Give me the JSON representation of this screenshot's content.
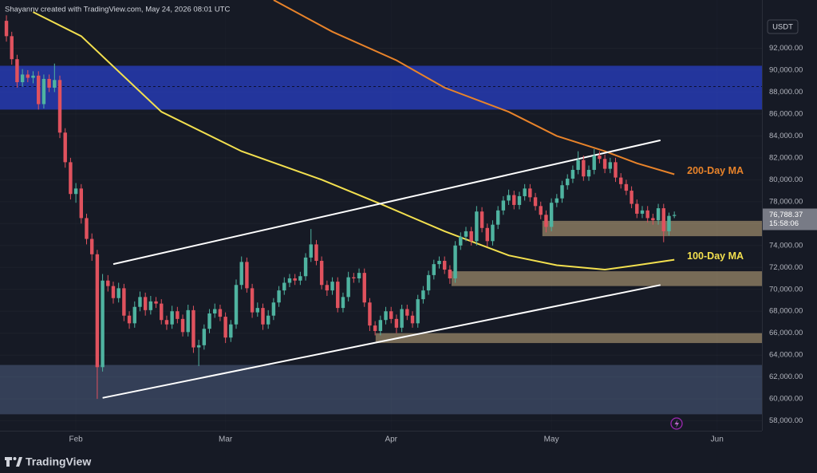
{
  "chart_data": {
    "type": "candlestick",
    "header": "Shayannv created with TradingView.com, May 24, 2026 08:01 UTC",
    "currency": "USDT",
    "watermark": "TradingView",
    "up_color": "#4fb3a0",
    "down_color": "#e0525e",
    "x": [
      -13,
      -12,
      -11,
      -10,
      -9,
      -8,
      -7,
      -6,
      -5,
      -4,
      -3,
      -2,
      -1,
      0,
      1,
      2,
      3,
      4,
      5,
      6,
      7,
      8,
      9,
      10,
      11,
      12,
      13,
      14,
      15,
      16,
      17,
      18,
      19,
      20,
      21,
      22,
      23,
      24,
      25,
      26,
      27,
      28,
      29,
      30,
      31,
      32,
      33,
      34,
      35,
      36,
      37,
      38,
      39,
      40,
      41,
      42,
      43,
      44,
      45,
      46,
      47,
      48,
      49,
      50,
      51,
      52,
      53,
      54,
      55,
      56,
      57,
      58,
      59,
      60,
      61,
      62,
      63,
      64,
      65,
      66,
      67,
      68,
      69,
      70,
      71,
      72,
      73,
      74,
      75,
      76,
      77,
      78,
      79,
      80,
      81,
      82,
      83,
      84,
      85,
      86,
      87,
      88,
      89,
      90,
      91,
      92,
      93,
      94,
      95,
      96,
      97,
      98,
      99,
      100,
      101,
      102,
      103,
      104,
      105,
      106,
      107,
      108,
      109,
      110,
      111,
      112
    ],
    "open": [
      94500,
      93100,
      91000,
      88900,
      89600,
      89300,
      89500,
      86900,
      89200,
      88400,
      89100,
      84300,
      81600,
      78700,
      79200,
      76500,
      74600,
      73200,
      62900,
      70800,
      70300,
      69200,
      70100,
      67600,
      66900,
      68400,
      69300,
      68100,
      68900,
      68700,
      67200,
      66800,
      68000,
      67300,
      66100,
      68100,
      64700,
      64900,
      66400,
      67800,
      68200,
      67500,
      65600,
      66800,
      70400,
      72500,
      70100,
      67900,
      68300,
      66800,
      67600,
      68800,
      69900,
      70600,
      71000,
      70800,
      71200,
      72900,
      74100,
      72600,
      70400,
      69900,
      70700,
      68300,
      69300,
      71100,
      71000,
      71500,
      68800,
      66700,
      66200,
      67200,
      68000,
      67300,
      66500,
      68200,
      67600,
      66900,
      69100,
      69900,
      71300,
      72300,
      72600,
      71800,
      71000,
      74000,
      74800,
      75300,
      74400,
      77100,
      75600,
      74400,
      75900,
      77200,
      78100,
      78600,
      77700,
      78500,
      79200,
      78400,
      77600,
      76800,
      75700,
      77900,
      78300,
      79500,
      80100,
      80900,
      81800,
      80300,
      80900,
      82200,
      81900,
      81000,
      81600,
      80200,
      79600,
      79000,
      77800,
      76900,
      77200,
      76500,
      76300,
      77400,
      75300,
      76700
    ],
    "high": [
      95000,
      93500,
      91400,
      90100,
      90000,
      89900,
      89900,
      89600,
      89600,
      90600,
      89500,
      84700,
      82000,
      79700,
      79600,
      76900,
      75100,
      73600,
      71400,
      71300,
      70700,
      70600,
      70500,
      68000,
      68900,
      69800,
      69700,
      69400,
      69300,
      69100,
      67600,
      68500,
      68400,
      67700,
      68600,
      68500,
      65400,
      66800,
      68200,
      68700,
      68600,
      67900,
      67200,
      70900,
      73000,
      72900,
      70500,
      68800,
      68700,
      68100,
      69200,
      70300,
      71100,
      71400,
      71400,
      71600,
      73300,
      75500,
      74500,
      73000,
      70800,
      71100,
      71100,
      69700,
      71600,
      71500,
      71900,
      71900,
      69200,
      67100,
      67600,
      68400,
      68400,
      67700,
      68600,
      68600,
      68000,
      69500,
      70300,
      71700,
      72700,
      73000,
      73000,
      72200,
      74400,
      75200,
      75700,
      75700,
      77600,
      77500,
      76000,
      76300,
      77600,
      78500,
      79100,
      79000,
      78900,
      79600,
      79600,
      78800,
      78000,
      77200,
      78300,
      78700,
      79900,
      80500,
      81300,
      82600,
      82200,
      81300,
      82800,
      82600,
      82300,
      82000,
      82000,
      80600,
      80000,
      79400,
      78200,
      77600,
      77600,
      76900,
      77800,
      77800,
      77000,
      77100
    ],
    "low": [
      92600,
      90500,
      88400,
      88500,
      88900,
      88800,
      86400,
      86500,
      88000,
      88000,
      83800,
      81100,
      78200,
      77900,
      76000,
      74100,
      72600,
      60000,
      62500,
      69800,
      68700,
      68800,
      67100,
      66400,
      66500,
      68000,
      67600,
      67700,
      68300,
      66800,
      66300,
      66400,
      66900,
      65700,
      65700,
      64200,
      63000,
      64500,
      66000,
      67400,
      67100,
      65100,
      65200,
      66400,
      70000,
      69700,
      67400,
      67500,
      66300,
      66400,
      67200,
      68400,
      69500,
      70200,
      70400,
      70400,
      70800,
      72500,
      72200,
      70000,
      69400,
      69500,
      67900,
      67900,
      68900,
      70600,
      70600,
      68400,
      66200,
      65800,
      65800,
      66800,
      66900,
      66000,
      66100,
      67200,
      66500,
      66500,
      68700,
      69500,
      70900,
      71900,
      71400,
      70500,
      70600,
      73600,
      74400,
      74000,
      74000,
      75200,
      73900,
      74000,
      75500,
      76800,
      77700,
      77300,
      77300,
      78100,
      78000,
      77200,
      76400,
      75200,
      75300,
      77500,
      77900,
      79100,
      79700,
      80500,
      79900,
      79900,
      80500,
      81500,
      80600,
      80600,
      79800,
      79200,
      78600,
      77400,
      76500,
      76500,
      76100,
      75900,
      75900,
      74300,
      74900,
      76500
    ],
    "close": [
      93100,
      91000,
      88900,
      89600,
      89300,
      89500,
      86900,
      89200,
      88400,
      89100,
      84300,
      81600,
      78700,
      79200,
      76500,
      74600,
      73200,
      62900,
      70800,
      70300,
      69200,
      70100,
      67600,
      66900,
      68400,
      69300,
      68100,
      68900,
      68700,
      67200,
      66800,
      68000,
      67300,
      66100,
      68100,
      64700,
      64900,
      66400,
      67800,
      68200,
      67500,
      65600,
      66800,
      70400,
      72500,
      70100,
      67900,
      68300,
      66800,
      67600,
      68800,
      69900,
      70600,
      71000,
      70800,
      71200,
      72900,
      74100,
      72600,
      70400,
      69900,
      70700,
      68300,
      69300,
      71100,
      71000,
      71500,
      68800,
      66700,
      66200,
      67200,
      68000,
      67300,
      66500,
      68200,
      67600,
      66900,
      69100,
      69900,
      71300,
      72300,
      72600,
      71800,
      71000,
      74000,
      74800,
      75300,
      74400,
      77100,
      75600,
      74400,
      75900,
      77200,
      78100,
      78600,
      77700,
      78500,
      79200,
      78400,
      77600,
      76800,
      75700,
      77900,
      78300,
      79500,
      80100,
      80900,
      81800,
      80300,
      80900,
      82200,
      81900,
      81000,
      81600,
      80200,
      79600,
      79000,
      77800,
      76900,
      77200,
      76500,
      76300,
      77400,
      75300,
      76700,
      76788.37
    ],
    "xlim": [
      -14.2,
      128.4
    ],
    "xticks": [
      {
        "value": 0,
        "label": "Feb"
      },
      {
        "value": 28,
        "label": "Mar"
      },
      {
        "value": 59,
        "label": "Apr"
      },
      {
        "value": 89,
        "label": "May"
      },
      {
        "value": 120,
        "label": "Jun"
      }
    ],
    "ylim": [
      57100,
      96400
    ],
    "yticks": [
      {
        "value": 58000,
        "label": "58,000.00"
      },
      {
        "value": 60000,
        "label": "60,000.00"
      },
      {
        "value": 62000,
        "label": "62,000.00"
      },
      {
        "value": 64000,
        "label": "64,000.00"
      },
      {
        "value": 66000,
        "label": "66,000.00"
      },
      {
        "value": 68000,
        "label": "68,000.00"
      },
      {
        "value": 70000,
        "label": "70,000.00"
      },
      {
        "value": 72000,
        "label": "72,000.00"
      },
      {
        "value": 74000,
        "label": "74,000.00"
      },
      {
        "value": 76000,
        "label": "76,000.00"
      },
      {
        "value": 78000,
        "label": "78,000.00"
      },
      {
        "value": 80000,
        "label": "80,000.00"
      },
      {
        "value": 82000,
        "label": "82,000.00"
      },
      {
        "value": 84000,
        "label": "84,000.00"
      },
      {
        "value": 86000,
        "label": "86,000.00"
      },
      {
        "value": 88000,
        "label": "88,000.00"
      },
      {
        "value": 90000,
        "label": "90,000.00"
      },
      {
        "value": 92000,
        "label": "92,000.00"
      }
    ],
    "zones": [
      {
        "top": 90400,
        "bottom": 86400,
        "color": "rgba(40,62,190,0.78)",
        "dashed_level": 88500
      },
      {
        "top": 63100,
        "bottom": 58600,
        "color": "rgba(110,135,180,0.35)"
      },
      {
        "x_start": 87.3,
        "top": 76250,
        "bottom": 74850,
        "color": "rgba(200,175,130,0.55)"
      },
      {
        "x_start": 70.3,
        "top": 71650,
        "bottom": 70300,
        "color": "rgba(200,175,130,0.55)"
      },
      {
        "x_start": 56.1,
        "top": 66000,
        "bottom": 65100,
        "color": "rgba(200,175,130,0.55)"
      }
    ],
    "trend_lines": [
      {
        "color": "#ffffff",
        "x": [
          7,
          109.4
        ],
        "values": [
          72300,
          83600
        ]
      },
      {
        "color": "#ffffff",
        "x": [
          5,
          109.4
        ],
        "values": [
          60100,
          70400
        ]
      }
    ],
    "moving_averages": [
      {
        "name": "200-Day MA",
        "color": "#e8832a",
        "x": [
          37,
          48,
          60,
          69,
          81,
          90,
          99,
          105,
          112
        ],
        "values": [
          96400,
          93500,
          90900,
          88400,
          86200,
          84000,
          82600,
          81500,
          80500
        ]
      },
      {
        "name": "100-Day MA",
        "color": "#f3e04f",
        "x": [
          -8,
          1,
          16,
          31,
          46,
          57,
          69,
          81,
          90,
          99,
          105,
          112
        ],
        "values": [
          95300,
          93100,
          86200,
          82600,
          80000,
          77800,
          75300,
          73100,
          72200,
          71800,
          72200,
          72700
        ]
      }
    ],
    "last_price": {
      "value": 76788.37,
      "label": "76,788.37"
    },
    "countdown": "15:58:06"
  }
}
